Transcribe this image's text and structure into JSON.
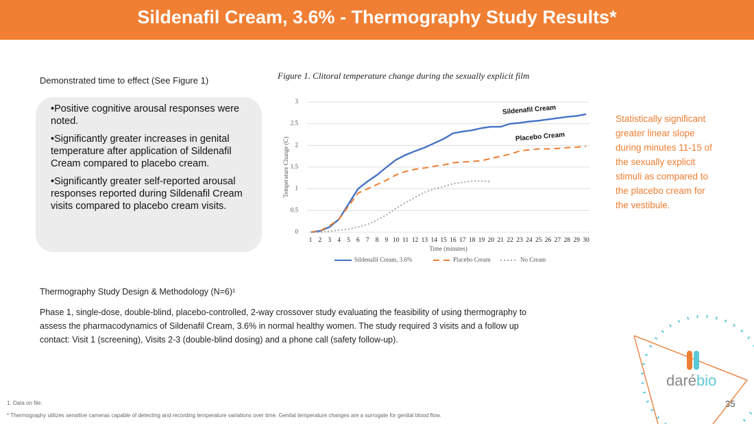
{
  "title": "Sildenafil Cream, 3.6% - Thermography Study Results*",
  "left_heading": "Demonstrated time to effect (See Figure 1)",
  "bullets": [
    "•Positive cognitive arousal responses were noted.",
    "•Significantly greater increases in genital temperature after application of Sildenafil Cream compared to placebo cream.",
    "•Significantly greater self-reported arousal responses reported during Sildenafil Cream visits compared to placebo cream visits."
  ],
  "right_note": "Statistically significant greater linear slope during minutes 11-15 of the sexually explicit stimuli as compared to the placebo cream for the vestibule.",
  "design_heading": "Thermography Study Design & Methodology (N=6)¹",
  "design_text": "Phase 1, single-dose, double-blind, placebo-controlled, 2-way crossover study evaluating the feasibility of using thermography to assess the pharmacodynamics of Sildenafil Cream, 3.6% in normal healthy women. The study required 3 visits and a follow up contact: Visit 1 (screening), Visits 2-3 (double-blind dosing) and a phone call (safety follow-up).",
  "footnote": "1. Data on file.",
  "footer_note": "* Thermography utilizes sensitive cameras capable of detecting and recording temperature variations over time. Genital temperature changes are a surrogate for genital blood flow.",
  "page_number": "35",
  "logo": {
    "part1": "daré",
    "part2": "bio"
  },
  "chart_data": {
    "type": "line",
    "title": "Figure 1. Clitoral temperature change during the sexually explicit film",
    "x_label": "Time (minutes)",
    "y_label": "Temperature Change (C)",
    "categories": [
      "1",
      "2",
      "3",
      "4",
      "5",
      "6",
      "7",
      "8",
      "9",
      "10",
      "11",
      "12",
      "13",
      "14",
      "15",
      "16",
      "17",
      "18",
      "19",
      "20",
      "21",
      "22",
      "23",
      "24",
      "25",
      "26",
      "27",
      "28",
      "29",
      "30"
    ],
    "ylim": [
      0,
      3
    ],
    "yticks": [
      0,
      0.5,
      1,
      1.5,
      2,
      2.5,
      3
    ],
    "grid": true,
    "legend": "bottom",
    "annotations": [
      "Sildenafil Cream",
      "Placebo Cream"
    ],
    "series": [
      {
        "name": "Sildenafil Cream, 3.6%",
        "color": "#4472c4",
        "dash": "solid",
        "values": [
          0,
          0.03,
          0.12,
          0.3,
          0.65,
          1.0,
          1.17,
          1.32,
          1.5,
          1.67,
          1.78,
          1.87,
          1.95,
          2.05,
          2.15,
          2.28,
          2.32,
          2.35,
          2.4,
          2.43,
          2.43,
          2.5,
          2.52,
          2.55,
          2.57,
          2.6,
          2.63,
          2.66,
          2.68,
          2.72
        ]
      },
      {
        "name": "Placebo Cream",
        "color": "#ed7d31",
        "dash": "dashed",
        "values": [
          0,
          0.03,
          0.15,
          0.3,
          0.6,
          0.9,
          1.0,
          1.1,
          1.2,
          1.32,
          1.4,
          1.45,
          1.48,
          1.52,
          1.55,
          1.6,
          1.62,
          1.63,
          1.65,
          1.7,
          1.75,
          1.8,
          1.87,
          1.9,
          1.92,
          1.92,
          1.93,
          1.95,
          1.96,
          1.98
        ]
      },
      {
        "name": "No Cream",
        "color": "#a5a5a5",
        "dash": "dotted",
        "values": [
          0,
          0,
          0.02,
          0.05,
          0.07,
          0.12,
          0.18,
          0.28,
          0.4,
          0.55,
          0.68,
          0.8,
          0.92,
          1.0,
          1.05,
          1.12,
          1.15,
          1.18,
          1.18,
          1.17,
          null,
          null,
          null,
          null,
          null,
          null,
          null,
          null,
          null,
          null
        ]
      }
    ]
  }
}
